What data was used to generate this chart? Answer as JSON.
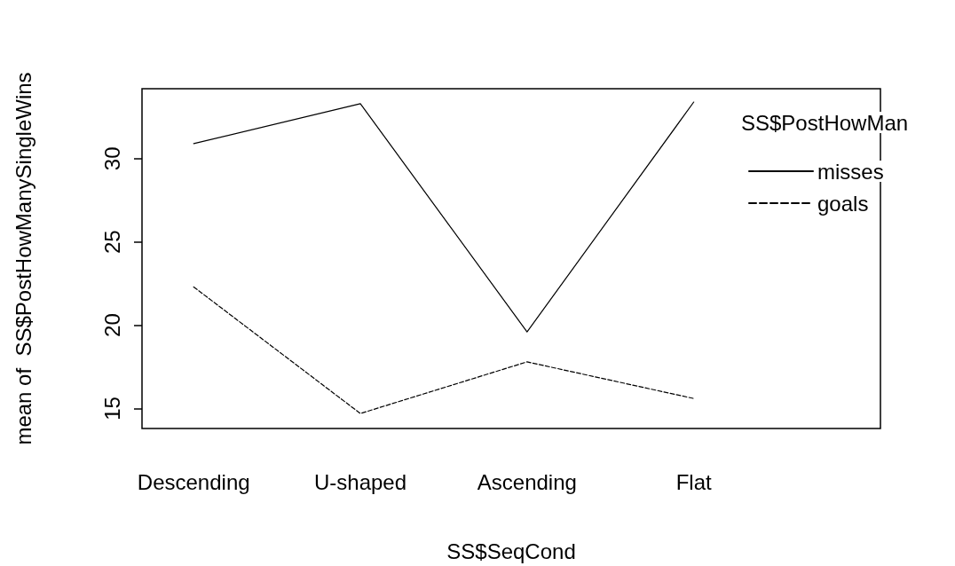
{
  "chart_data": {
    "type": "line",
    "xlabel": "SS$SeqCond",
    "ylabel": "mean of  SS$PostHowManySingleWins",
    "legend_title": "SS$PostHowMan",
    "categories": [
      "Descending",
      "U-shaped",
      "Ascending",
      "Flat"
    ],
    "series": [
      {
        "name": "misses",
        "color": "#000000",
        "line_style": "solid",
        "values": [
          30.9,
          33.3,
          19.6,
          33.4
        ]
      },
      {
        "name": "goals",
        "color": "#000000",
        "line_style": "dashed",
        "values": [
          22.3,
          14.7,
          17.8,
          15.6
        ]
      }
    ],
    "ylim": [
      13.8,
      34.2
    ],
    "yticks": [
      15,
      20,
      25,
      30
    ],
    "grid": false,
    "legend": "top right",
    "marker": "none"
  }
}
